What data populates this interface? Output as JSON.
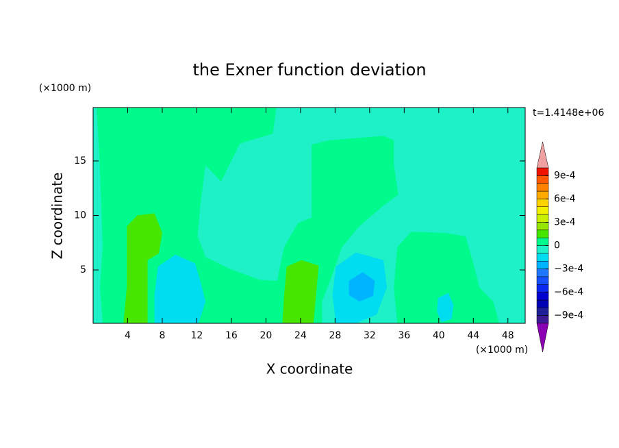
{
  "chart_data": {
    "type": "contour",
    "title": "the Exner function deviation",
    "x_label": "X coordinate",
    "y_label": "Z coordinate",
    "x_unit": "(×1000 m)",
    "y_unit": "(×1000 m)",
    "time_label": "t=1.4148e+06",
    "xlim": [
      0,
      50
    ],
    "ylim": [
      0.1,
      19.9
    ],
    "xticks": [
      4,
      8,
      12,
      16,
      20,
      24,
      28,
      32,
      36,
      40,
      44,
      48
    ],
    "yticks": [
      5,
      10,
      15
    ],
    "colorbar": {
      "lim": [
        -0.001,
        0.001
      ],
      "colors": [
        "#3c1a96",
        "#1e1e96",
        "#0000b4",
        "#0000d2",
        "#0a28f0",
        "#1450ff",
        "#1e78ff",
        "#00b4ff",
        "#00dcf0",
        "#1ef0c8",
        "#00fa8c",
        "#46e600",
        "#96e600",
        "#c8f000",
        "#f0f000",
        "#ffd200",
        "#ffaa00",
        "#ff8200",
        "#ff5a00",
        "#f01400"
      ],
      "under_color": "#8c00b4",
      "over_color": "#f0a0a0",
      "ticks": [
        {
          "value": 0.0009,
          "label": "9e-4"
        },
        {
          "value": 0.0006,
          "label": "6e-4"
        },
        {
          "value": 0.0003,
          "label": "3e-4"
        },
        0,
        {
          "value": -0.0003,
          "label": "−3e-4"
        },
        {
          "value": -0.0006,
          "label": "−6e-4"
        },
        {
          "value": -0.0009,
          "label": "−9e-4"
        }
      ]
    },
    "regions": [
      {
        "value": -0.0001,
        "x": [
          0,
          50,
          50,
          0
        ],
        "z": [
          0.1,
          0.1,
          19.9,
          19.9
        ]
      },
      {
        "value": 0,
        "x": [
          0.4,
          21.2,
          20.8,
          17.0,
          15.8,
          14.8,
          13.0,
          12.4,
          12.1,
          13.0,
          15.8,
          19.3,
          21.3,
          22.1,
          23.7,
          25.3,
          25.3,
          27.3,
          33.6,
          34.8,
          34.8,
          35.3,
          33.6,
          30.8,
          28.8,
          27.7,
          26.5,
          26.5,
          1.1,
          0.8,
          1.1,
          0.8
        ],
        "z": [
          19.9,
          19.9,
          17.5,
          16.6,
          14.7,
          13.1,
          14.6,
          10.9,
          8.1,
          6.2,
          5.1,
          4.1,
          4.0,
          7.1,
          9.3,
          9.8,
          16.5,
          16.9,
          17.3,
          16.9,
          14.7,
          11.9,
          10.9,
          9.0,
          7.1,
          4.6,
          2.1,
          0.1,
          0.1,
          3.4,
          7.1,
          14.1
        ]
      },
      {
        "value": 0,
        "x": [
          35.2,
          36.8,
          40.7,
          43.1,
          43.9,
          44.7,
          46.3,
          47.0,
          35.2,
          34.8
        ],
        "z": [
          7.1,
          8.5,
          8.4,
          8.1,
          5.9,
          3.4,
          2.1,
          0.1,
          0.1,
          3.4
        ]
      },
      {
        "value": 0.0001,
        "x": [
          3.9,
          5.1,
          7.1,
          8.0,
          7.6,
          6.3,
          6.3,
          3.5,
          3.9
        ],
        "z": [
          9.0,
          10.0,
          10.2,
          8.4,
          6.5,
          5.9,
          0.1,
          0.1,
          3.4
        ]
      },
      {
        "value": 0.0001,
        "x": [
          22.4,
          24.1,
          26.1,
          25.8,
          25.5,
          21.9,
          22.1
        ],
        "z": [
          5.3,
          5.9,
          5.4,
          2.7,
          0.1,
          0.1,
          2.7
        ]
      },
      {
        "value": -0.0002,
        "x": [
          7.5,
          9.5,
          11.8,
          12.4,
          13.0,
          12.2,
          7.1,
          7.1
        ],
        "z": [
          5.3,
          6.4,
          5.6,
          4.0,
          2.1,
          0.1,
          0.1,
          2.7
        ]
      },
      {
        "value": -0.0002,
        "x": [
          28.1,
          30.4,
          33.6,
          34.0,
          32.8,
          30.4,
          28.1,
          27.7
        ],
        "z": [
          5.3,
          6.6,
          5.9,
          3.4,
          0.9,
          0.1,
          0.1,
          2.7
        ]
      },
      {
        "value": -0.0003,
        "x": [
          29.6,
          31.2,
          32.6,
          32.4,
          30.8,
          29.6
        ],
        "z": [
          4.0,
          4.8,
          4.0,
          2.6,
          2.1,
          2.7
        ]
      },
      {
        "value": -0.0002,
        "x": [
          39.9,
          41.1,
          41.7,
          41.5,
          40.3,
          39.8
        ],
        "z": [
          2.4,
          2.9,
          1.8,
          0.5,
          0.2,
          1.2
        ]
      }
    ]
  }
}
